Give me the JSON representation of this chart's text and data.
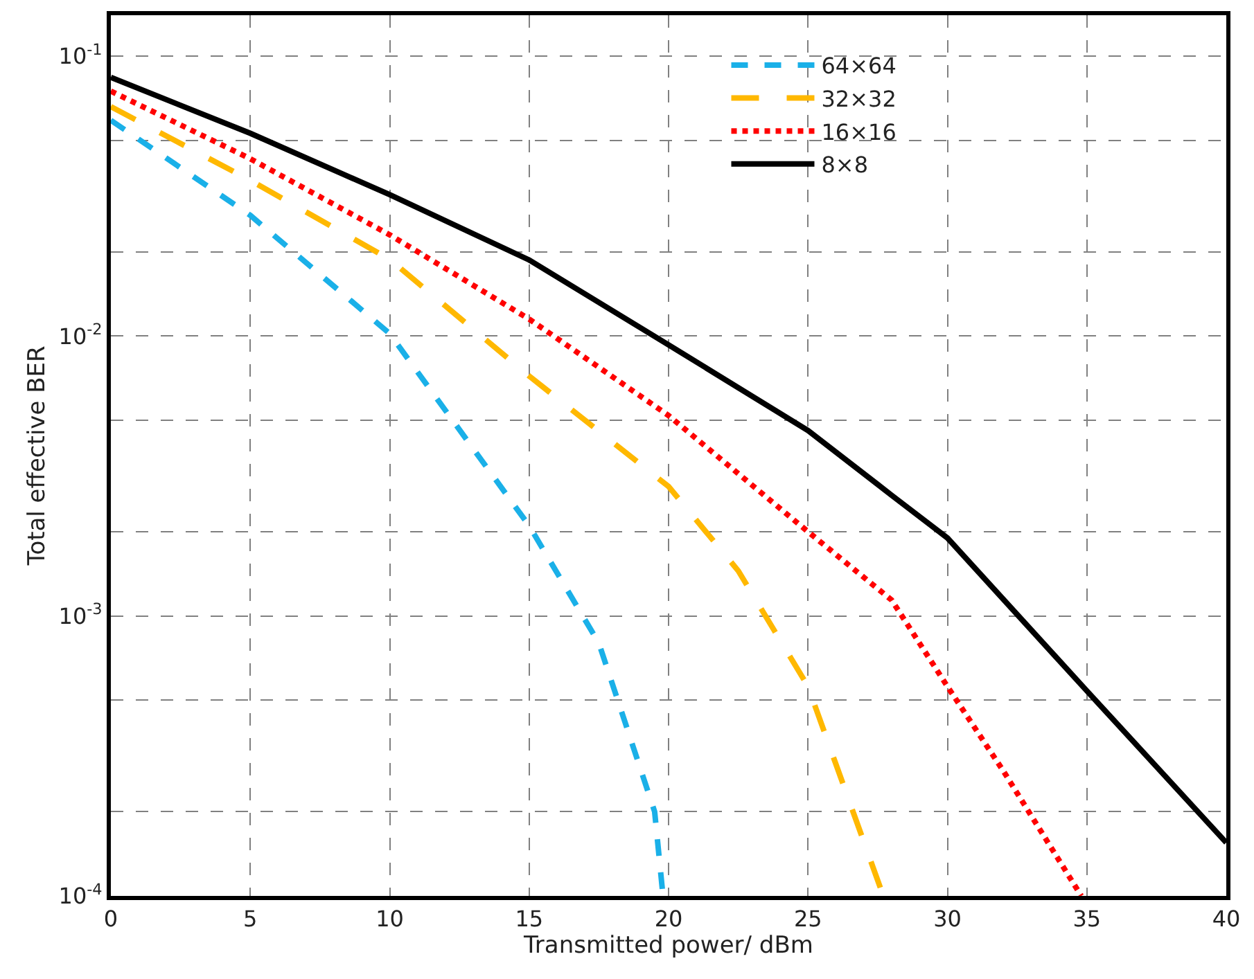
{
  "chart_data": {
    "type": "line",
    "xlabel": "Transmitted power/ dBm",
    "ylabel": "Total effective BER",
    "log": "y",
    "grid": true,
    "legend": "top right",
    "marker": "none",
    "xlim": [
      0,
      40
    ],
    "xticks": [
      0,
      5,
      10,
      15,
      20,
      25,
      30,
      35,
      40
    ],
    "ylim": [
      0.0001,
      0.14
    ],
    "yticks": [
      {
        "value": 0.1,
        "label": "10$^{-1}$"
      },
      {
        "value": 0.05,
        "label": null
      },
      {
        "value": 0.02,
        "label": null
      },
      {
        "value": 0.01,
        "label": "10$^{-2}$"
      },
      {
        "value": 0.005,
        "label": null
      },
      {
        "value": 0.002,
        "label": null
      },
      {
        "value": 0.001,
        "label": "10$^{-3}$"
      },
      {
        "value": 0.0005,
        "label": null
      },
      {
        "value": 0.0002,
        "label": null
      },
      {
        "value": 0.0001,
        "label": "10$^{-4}$"
      }
    ],
    "series": [
      {
        "name": "64×64",
        "color": "#1ab0e8",
        "line_style": "dashed",
        "x": [
          0,
          5,
          10,
          15,
          17.5,
          19.5,
          19.8
        ],
        "values": [
          0.059,
          0.027,
          0.0102,
          0.0021,
          0.0008,
          0.0002,
          0.0001
        ]
      },
      {
        "name": "32×32",
        "color": "#ffb800",
        "line_style": "longdash",
        "x": [
          0,
          5,
          10,
          15,
          20,
          22.5,
          25,
          27.7
        ],
        "values": [
          0.066,
          0.036,
          0.0188,
          0.0072,
          0.0029,
          0.00145,
          0.00056,
          0.0001
        ]
      },
      {
        "name": "16×16",
        "color": "#ff0000",
        "line_style": "dotted",
        "x": [
          0,
          5,
          10,
          15,
          20,
          25,
          28,
          30,
          32,
          34.8
        ],
        "values": [
          0.075,
          0.043,
          0.023,
          0.0115,
          0.0052,
          0.002,
          0.00114,
          0.00056,
          0.00028,
          0.0001
        ]
      },
      {
        "name": "8×8",
        "color": "#000000",
        "line_style": "solid",
        "x": [
          0,
          5,
          10,
          15,
          20,
          25,
          28,
          30,
          35,
          40
        ],
        "values": [
          0.084,
          0.053,
          0.032,
          0.0187,
          0.0093,
          0.0046,
          0.0027,
          0.0019,
          0.00054,
          0.000155
        ]
      }
    ]
  }
}
